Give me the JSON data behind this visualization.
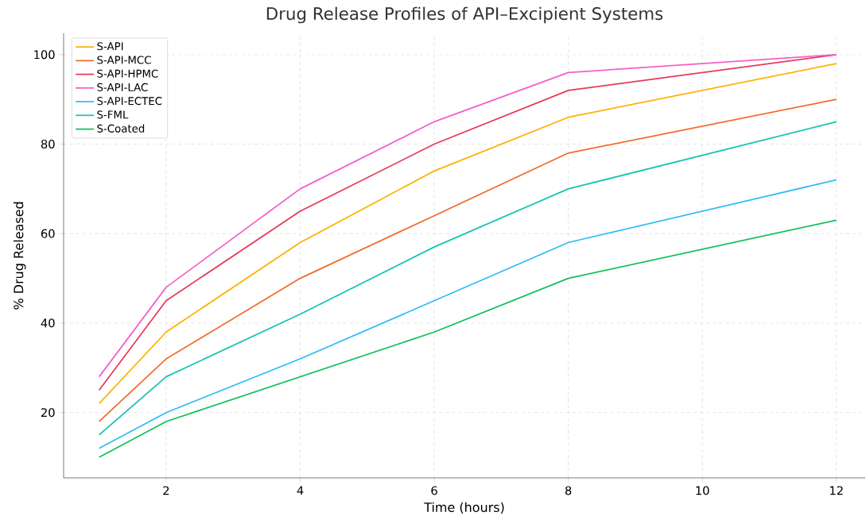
{
  "chart_data": {
    "type": "line",
    "title": "Drug Release Profiles of API–Excipient Systems",
    "xlabel": "Time (hours)",
    "ylabel": "% Drug Released",
    "x": [
      1,
      2,
      4,
      6,
      8,
      12
    ],
    "series": [
      {
        "name": "S-API",
        "color": "#ffb000",
        "values": [
          22,
          38,
          58,
          74,
          86,
          98
        ]
      },
      {
        "name": "S-API-MCC",
        "color": "#f26b2a",
        "values": [
          18,
          32,
          50,
          64,
          78,
          90
        ]
      },
      {
        "name": "S-API-HPMC",
        "color": "#e8385a",
        "values": [
          25,
          45,
          65,
          80,
          92,
          100
        ]
      },
      {
        "name": "S-API-LAC",
        "color": "#f45fc8",
        "values": [
          28,
          48,
          70,
          85,
          96,
          100
        ]
      },
      {
        "name": "S-API-ECTEC",
        "color": "#2fbcf5",
        "values": [
          12,
          20,
          32,
          45,
          58,
          72
        ]
      },
      {
        "name": "S-FML",
        "color": "#17c3b2",
        "values": [
          15,
          28,
          42,
          57,
          70,
          85
        ]
      },
      {
        "name": "S-Coated",
        "color": "#12c05a",
        "values": [
          10,
          18,
          28,
          38,
          50,
          63
        ]
      }
    ],
    "xlim": [
      0.47,
      12.43
    ],
    "ylim": [
      5.4,
      104.75
    ],
    "xticks": [
      2,
      4,
      6,
      8,
      10,
      12
    ],
    "yticks": [
      20,
      40,
      60,
      80,
      100
    ],
    "grid": true,
    "legend": "top left",
    "marker": "none",
    "line_style": "solid"
  }
}
